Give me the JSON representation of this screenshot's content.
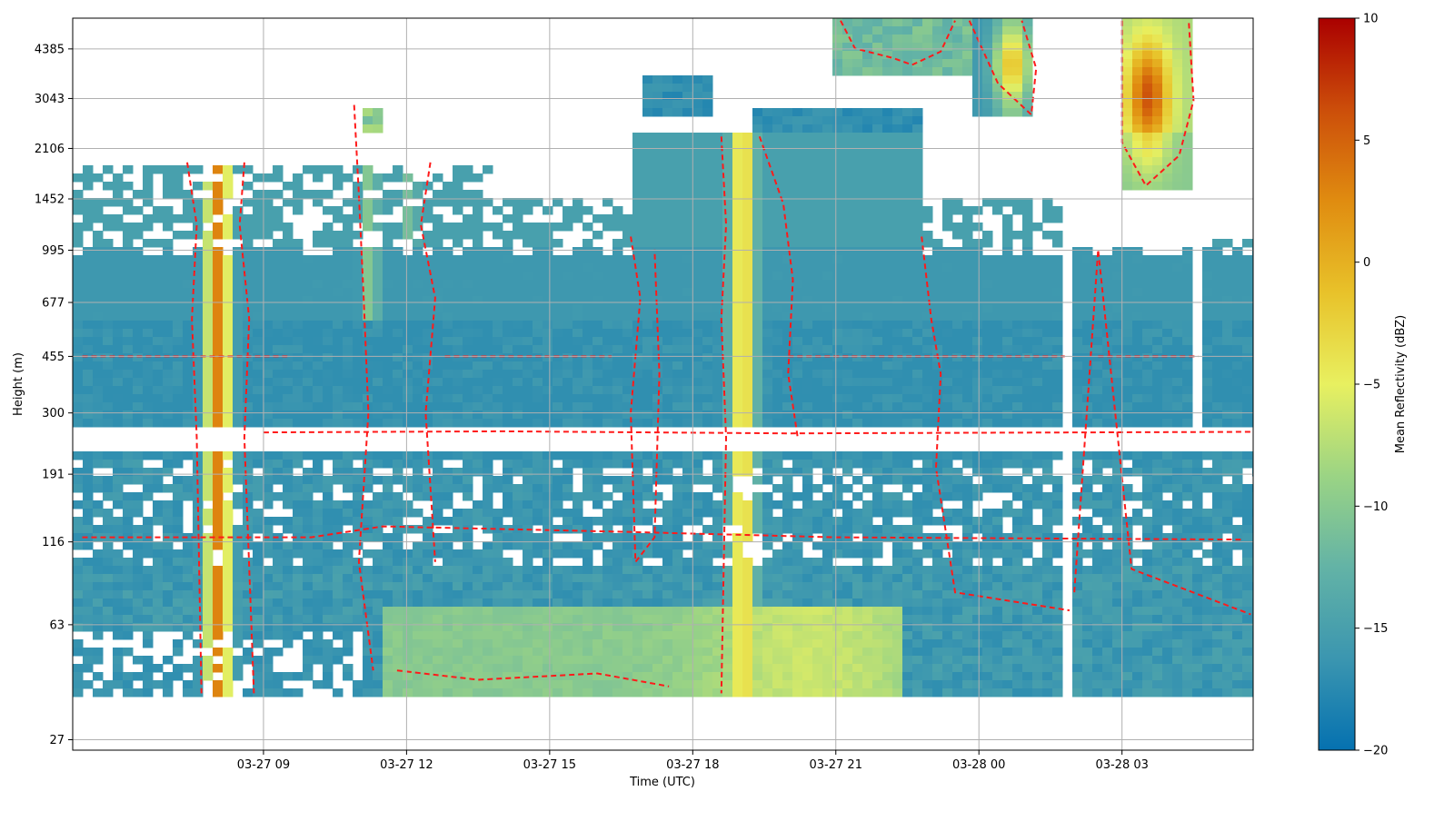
{
  "chart_data": {
    "type": "heatmap",
    "title": "",
    "xlabel": "Time (UTC)",
    "ylabel": "Height (m)",
    "x_range": [
      "2024-03-27T05:00",
      "2024-03-28T05:45"
    ],
    "x_tick_labels": [
      "03-27 09",
      "03-27 12",
      "03-27 15",
      "03-27 18",
      "03-27 21",
      "03-28 00",
      "03-28 03"
    ],
    "x_tick_hours": [
      9,
      12,
      15,
      18,
      21,
      24,
      27
    ],
    "y_scale": "log",
    "y_range_m": [
      25,
      5500
    ],
    "y_tick_labels": [
      "27",
      "63",
      "116",
      "191",
      "300",
      "455",
      "677",
      "995",
      "1452",
      "2106",
      "3043",
      "4385"
    ],
    "y_tick_values": [
      27,
      63,
      116,
      191,
      300,
      455,
      677,
      995,
      1452,
      2106,
      3043,
      4385
    ],
    "grid": true,
    "contour_style": "red dashed",
    "colorbar": {
      "label": "Mean Reflectivity (dBZ)",
      "range": [
        -20,
        10
      ],
      "tick_labels": [
        "10",
        "5",
        "0",
        "−5",
        "−10",
        "−15",
        "−20"
      ],
      "tick_values": [
        10,
        5,
        0,
        -5,
        -10,
        -15,
        -20
      ],
      "colormap": [
        "#0571b0",
        "#3b96b0",
        "#63b3a6",
        "#9bd484",
        "#e8f060",
        "#e8c22a",
        "#e08c10",
        "#cc4e0a",
        "#aa0000"
      ]
    },
    "features": [
      {
        "name": "precipitation shaft",
        "t_start_hour": 7.8,
        "t_end_hour": 8.3,
        "z_min_m": 38,
        "z_max_m": 1900,
        "peak_dbz": 3
      },
      {
        "name": "narrow cell",
        "t_start_hour": 11.1,
        "t_end_hour": 11.4,
        "z_min_m": 600,
        "z_max_m": 2900,
        "peak_dbz": -8
      },
      {
        "name": "narrow cell",
        "t_start_hour": 12.0,
        "t_end_hour": 12.2,
        "z_min_m": 995,
        "z_max_m": 1900,
        "peak_dbz": -8
      },
      {
        "name": "precipitation shaft",
        "t_start_hour": 18.8,
        "t_end_hour": 19.3,
        "z_min_m": 38,
        "z_max_m": 2300,
        "peak_dbz": -2
      },
      {
        "name": "low-level band",
        "t_start_hour": 11.5,
        "t_end_hour": 22.5,
        "z_min_m": 38,
        "z_max_m": 70,
        "peak_dbz": -7
      },
      {
        "name": "upper cloud",
        "t_start_hour": 23.8,
        "t_end_hour": 25.2,
        "z_min_m": 2600,
        "z_max_m": 5400,
        "peak_dbz": 0
      },
      {
        "name": "upper cloud",
        "t_start_hour": 27.0,
        "t_end_hour": 28.5,
        "z_min_m": 1600,
        "z_max_m": 5400,
        "peak_dbz": 6
      }
    ]
  }
}
